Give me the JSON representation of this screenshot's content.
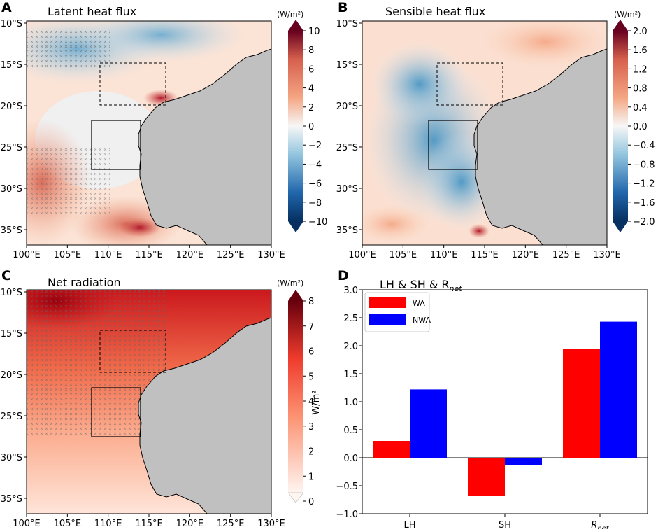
{
  "panels": [
    {
      "letter": "A",
      "title": "Latent heat flux",
      "unit": "(W/m²)",
      "colorbar": {
        "scheme": "diverging",
        "ticks": [
          "10",
          "8",
          "6",
          "4",
          "2",
          "0",
          "−2",
          "−4",
          "−6",
          "−8",
          "−10"
        ]
      }
    },
    {
      "letter": "B",
      "title": "Sensible heat flux",
      "unit": "(W/m²)",
      "colorbar": {
        "scheme": "diverging",
        "ticks": [
          "2.0",
          "1.6",
          "1.2",
          "0.8",
          "0.4",
          "0.0",
          "−0.4",
          "−0.8",
          "−1.2",
          "−1.6",
          "−2.0"
        ]
      }
    },
    {
      "letter": "C",
      "title": "Net radiation",
      "unit": "(W/m²)",
      "colorbar": {
        "scheme": "sequential",
        "ticks": [
          "8",
          "7",
          "6",
          "5",
          "4",
          "3",
          "2",
          "1",
          "0"
        ],
        "side_label": "W/m²"
      }
    }
  ],
  "map_axes": {
    "lat_ticks": [
      "10°S",
      "15°S",
      "20°S",
      "25°S",
      "30°S",
      "35°S"
    ],
    "lon_ticks": [
      "100°E",
      "105°E",
      "110°E",
      "115°E",
      "120°E",
      "125°E",
      "130°E"
    ]
  },
  "chart_data": {
    "type": "bar",
    "letter": "D",
    "title": "LH & SH & R",
    "title_sub": "net",
    "categories": [
      "LH",
      "SH",
      "R"
    ],
    "category_subscripts": [
      "",
      "",
      "net"
    ],
    "series": [
      {
        "name": "WA",
        "color": "#ff0000",
        "values": [
          0.3,
          -0.68,
          1.95
        ]
      },
      {
        "name": "NWA",
        "color": "#0000ff",
        "values": [
          1.22,
          -0.13,
          2.43
        ]
      }
    ],
    "ylim": [
      -1.0,
      3.0
    ],
    "yticks": [
      "−1.0",
      "−0.5",
      "0.0",
      "0.5",
      "1.0",
      "1.5",
      "2.0",
      "2.5",
      "3.0"
    ],
    "legend_position": "upper-left"
  },
  "colors": {
    "land": "#c0c0c0",
    "pos": "#b2182b",
    "neg": "#2166ac"
  }
}
